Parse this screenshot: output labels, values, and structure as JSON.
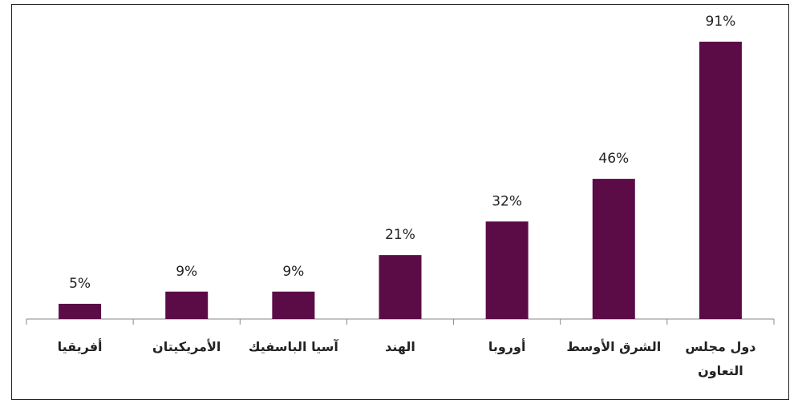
{
  "chart_data": {
    "type": "bar",
    "categories": [
      "أفريقيا",
      "الأمريكيتان",
      "آسيا الباسفيك",
      "الهند",
      "أوروبا",
      "الشرق الأوسط",
      "دول مجلس التعاون"
    ],
    "values": [
      5,
      9,
      9,
      21,
      32,
      46,
      91
    ],
    "value_labels": [
      "5%",
      "9%",
      "9%",
      "21%",
      "32%",
      "46%",
      "91%"
    ],
    "color": "#5b0c47"
  }
}
